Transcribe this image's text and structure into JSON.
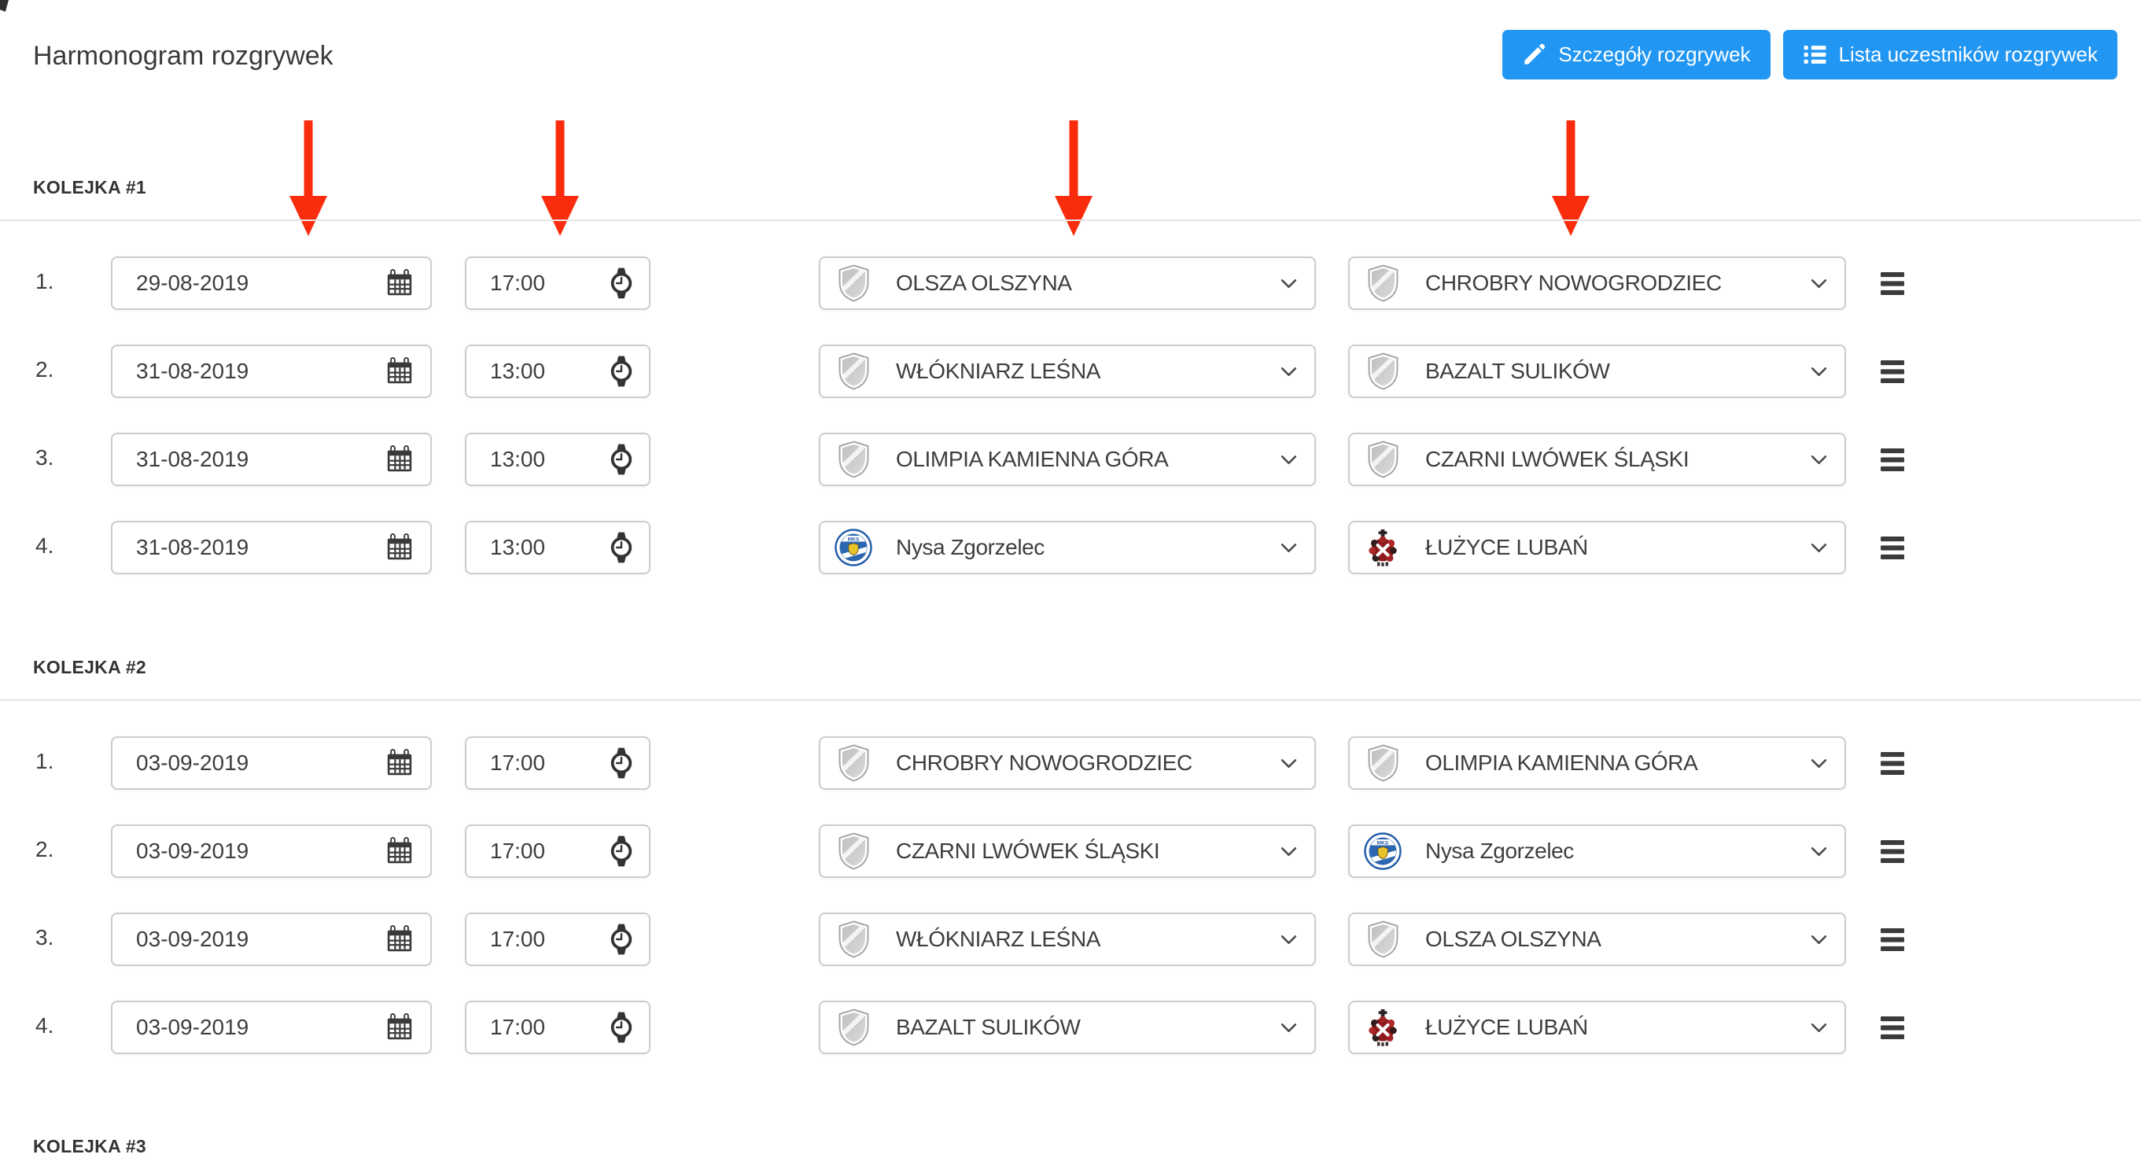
{
  "page": {
    "title": "Harmonogram rozgrywek",
    "background": "#ffffff"
  },
  "toolbar": {
    "button_color": "#2196f3",
    "details_button": {
      "label": "Szczegóły rozgrywek",
      "icon": "pencil-icon"
    },
    "participants_button": {
      "label": "Lista uczestników rozgrywek",
      "icon": "list-icon"
    }
  },
  "annotations": {
    "arrow_color": "#fa2c0e",
    "red_arrows_point_at": [
      "date-column",
      "time-column",
      "home-team-column",
      "away-team-column"
    ]
  },
  "icons": {
    "date_field": "calendar-icon",
    "time_field": "watch-icon",
    "team_default": "shield-badge-icon",
    "select_expand": "chevron-down-icon",
    "row_reorder": "drag-handle-icon"
  },
  "rounds": [
    {
      "label": "KOLEJKA #1",
      "matches": [
        {
          "no": "1.",
          "date": "29-08-2019",
          "time": "17:00",
          "home": {
            "name": "OLSZA OLSZYNA",
            "badge": "default-shield"
          },
          "away": {
            "name": "CHROBRY NOWOGRODZIEC",
            "badge": "default-shield"
          }
        },
        {
          "no": "2.",
          "date": "31-08-2019",
          "time": "13:00",
          "home": {
            "name": "WŁÓKNIARZ LEŚNA",
            "badge": "default-shield"
          },
          "away": {
            "name": "BAZALT SULIKÓW",
            "badge": "default-shield"
          }
        },
        {
          "no": "3.",
          "date": "31-08-2019",
          "time": "13:00",
          "home": {
            "name": "OLIMPIA KAMIENNA GÓRA",
            "badge": "default-shield"
          },
          "away": {
            "name": "CZARNI LWÓWEK ŚLĄSKI",
            "badge": "default-shield"
          }
        },
        {
          "no": "4.",
          "date": "31-08-2019",
          "time": "13:00",
          "home": {
            "name": "Nysa Zgorzelec",
            "badge": "nysa-zgorzelec-crest"
          },
          "away": {
            "name": "ŁUŻYCE LUBAŃ",
            "badge": "luzyce-luban-crest"
          }
        }
      ]
    },
    {
      "label": "KOLEJKA #2",
      "matches": [
        {
          "no": "1.",
          "date": "03-09-2019",
          "time": "17:00",
          "home": {
            "name": "CHROBRY NOWOGRODZIEC",
            "badge": "default-shield"
          },
          "away": {
            "name": "OLIMPIA KAMIENNA GÓRA",
            "badge": "default-shield"
          }
        },
        {
          "no": "2.",
          "date": "03-09-2019",
          "time": "17:00",
          "home": {
            "name": "CZARNI LWÓWEK ŚLĄSKI",
            "badge": "default-shield"
          },
          "away": {
            "name": "Nysa Zgorzelec",
            "badge": "nysa-zgorzelec-crest"
          }
        },
        {
          "no": "3.",
          "date": "03-09-2019",
          "time": "17:00",
          "home": {
            "name": "WŁÓKNIARZ LEŚNA",
            "badge": "default-shield"
          },
          "away": {
            "name": "OLSZA OLSZYNA",
            "badge": "default-shield"
          }
        },
        {
          "no": "4.",
          "date": "03-09-2019",
          "time": "17:00",
          "home": {
            "name": "BAZALT SULIKÓW",
            "badge": "default-shield"
          },
          "away": {
            "name": "ŁUŻYCE LUBAŃ",
            "badge": "luzyce-luban-crest"
          }
        }
      ]
    },
    {
      "label": "KOLEJKA #3",
      "matches": []
    }
  ]
}
